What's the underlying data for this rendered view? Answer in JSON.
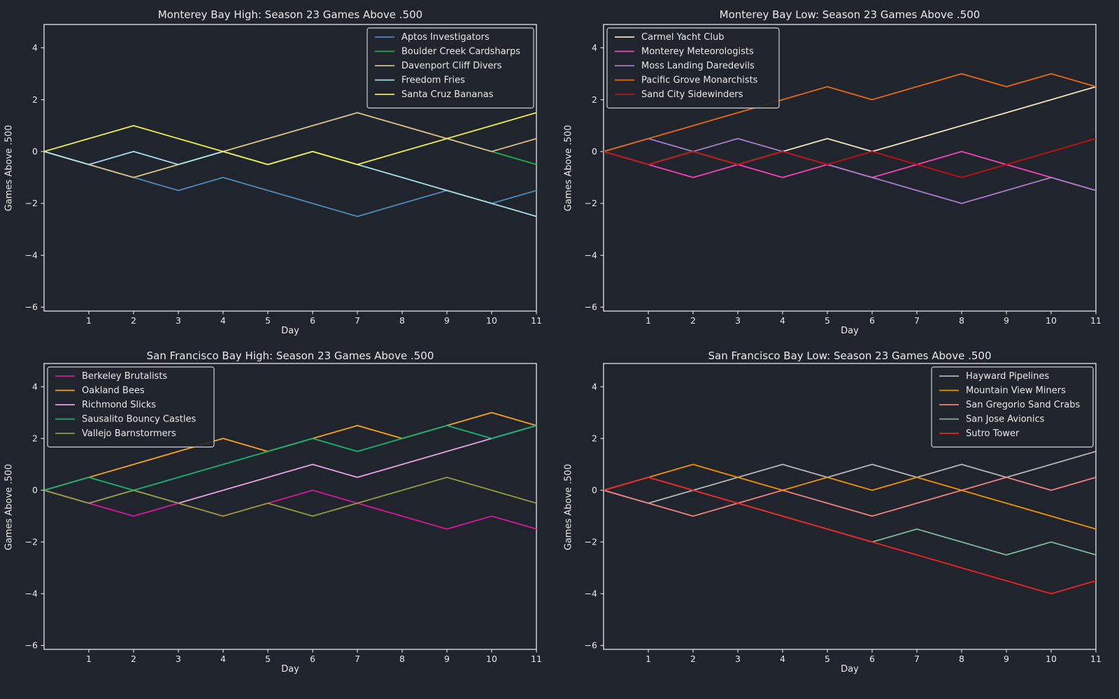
{
  "figure": {
    "background": "#20252d",
    "text_color": "#e9e9e9",
    "axis_color": "#d5d8dc",
    "legend_border_color": "#ccd0d4"
  },
  "chart_data": [
    {
      "type": "line",
      "title": "Monterey Bay High: Season 23 Games Above .500",
      "xlabel": "Day",
      "ylabel": "Games Above .500",
      "xlim": [
        0,
        11
      ],
      "ylim": [
        -6.15,
        4.9
      ],
      "x_ticks": [
        1,
        2,
        3,
        4,
        5,
        6,
        7,
        8,
        9,
        10,
        11
      ],
      "y_ticks": [
        -6,
        -4,
        -2,
        0,
        2,
        4
      ],
      "grid": false,
      "legend_position": "upper-right",
      "x": [
        0,
        1,
        2,
        3,
        4,
        5,
        6,
        7,
        8,
        9,
        10,
        11
      ],
      "series": [
        {
          "name": "Aptos Investigators",
          "color": "#5088b8",
          "values": [
            0,
            -0.5,
            -1,
            -1.5,
            -1,
            -1.5,
            -2,
            -2.5,
            -2,
            -1.5,
            -2,
            -1.5
          ]
        },
        {
          "name": "Boulder Creek Cardsharps",
          "color": "#1eb14b",
          "values": [
            0,
            -0.5,
            -1,
            -0.5,
            0,
            0.5,
            1,
            1.5,
            1,
            0.5,
            0,
            -0.5
          ]
        },
        {
          "name": "Davenport Cliff Divers",
          "color": "#deb887",
          "values": [
            0,
            -0.5,
            -1,
            -0.5,
            0,
            0.5,
            1,
            1.5,
            1,
            0.5,
            0,
            0.5
          ]
        },
        {
          "name": "Freedom Fries",
          "color": "#aadde6",
          "values": [
            0,
            -0.5,
            0,
            -0.5,
            0,
            -0.5,
            0,
            -0.5,
            -1,
            -1.5,
            -2,
            -2.5
          ]
        },
        {
          "name": "Santa Cruz Bananas",
          "color": "#ecec4d",
          "values": [
            0,
            0.5,
            1,
            0.5,
            0,
            -0.5,
            0,
            -0.5,
            0,
            0.5,
            1,
            1.5
          ]
        }
      ]
    },
    {
      "type": "line",
      "title": "Monterey Bay Low: Season 23 Games Above .500",
      "xlabel": "Day",
      "ylabel": "Games Above .500",
      "xlim": [
        0,
        11
      ],
      "ylim": [
        -6.15,
        4.9
      ],
      "x_ticks": [
        1,
        2,
        3,
        4,
        5,
        6,
        7,
        8,
        9,
        10,
        11
      ],
      "y_ticks": [
        -6,
        -4,
        -2,
        0,
        2,
        4
      ],
      "grid": false,
      "legend_position": "upper-left",
      "x": [
        0,
        1,
        2,
        3,
        4,
        5,
        6,
        7,
        8,
        9,
        10,
        11
      ],
      "series": [
        {
          "name": "Carmel Yacht Club",
          "color": "#f2e2bd",
          "values": [
            0,
            -0.5,
            0,
            -0.5,
            0,
            0.5,
            0,
            0.5,
            1,
            1.5,
            2,
            2.5
          ]
        },
        {
          "name": "Monterey Meteorologists",
          "color": "#f243b5",
          "values": [
            0,
            -0.5,
            -1,
            -0.5,
            -1,
            -0.5,
            -1,
            -0.5,
            0,
            -0.5,
            -1,
            -1.5
          ]
        },
        {
          "name": "Moss Landing Daredevils",
          "color": "#a67dca",
          "values": [
            0,
            0.5,
            0,
            0.5,
            0,
            -0.5,
            -1,
            -1.5,
            -2,
            -1.5,
            -1,
            -1.5
          ]
        },
        {
          "name": "Pacific Grove Monarchists",
          "color": "#ea690f",
          "values": [
            0,
            0.5,
            1,
            1.5,
            2,
            2.5,
            2,
            2.5,
            3,
            2.5,
            3,
            2.5
          ]
        },
        {
          "name": "Sand City Sidewinders",
          "color": "#c21010",
          "values": [
            0,
            -0.5,
            0,
            -0.5,
            0,
            -0.5,
            0,
            -0.5,
            -1,
            -0.5,
            0,
            0.5
          ]
        }
      ]
    },
    {
      "type": "line",
      "title": "San Francisco Bay High: Season 23 Games Above .500",
      "xlabel": "Day",
      "ylabel": "Games Above .500",
      "xlim": [
        0,
        11
      ],
      "ylim": [
        -6.15,
        4.9
      ],
      "x_ticks": [
        1,
        2,
        3,
        4,
        5,
        6,
        7,
        8,
        9,
        10,
        11
      ],
      "y_ticks": [
        -6,
        -4,
        -2,
        0,
        2,
        4
      ],
      "grid": false,
      "legend_position": "upper-left",
      "x": [
        0,
        1,
        2,
        3,
        4,
        5,
        6,
        7,
        8,
        9,
        10,
        11
      ],
      "series": [
        {
          "name": "Berkeley Brutalists",
          "color": "#d4189d",
          "values": [
            0,
            -0.5,
            -1,
            -0.5,
            -1,
            -0.5,
            0,
            -0.5,
            -1,
            -1.5,
            -1,
            -1.5
          ]
        },
        {
          "name": "Oakland Bees",
          "color": "#f7a41b",
          "values": [
            0,
            0.5,
            1,
            1.5,
            2,
            1.5,
            2,
            2.5,
            2,
            2.5,
            3,
            2.5
          ]
        },
        {
          "name": "Richmond Slicks",
          "color": "#e6a3df",
          "values": [
            0,
            -0.5,
            0,
            -0.5,
            0,
            0.5,
            1,
            0.5,
            1,
            1.5,
            2,
            2.5
          ]
        },
        {
          "name": "Sausalito Bouncy Castles",
          "color": "#17b273",
          "values": [
            0,
            0.5,
            0,
            0.5,
            1,
            1.5,
            2,
            1.5,
            2,
            2.5,
            2,
            2.5
          ]
        },
        {
          "name": "Vallejo Barnstormers",
          "color": "#8e9c3e",
          "values": [
            0,
            -0.5,
            0,
            -0.5,
            -1,
            -0.5,
            -1,
            -0.5,
            0,
            0.5,
            0,
            -0.5
          ]
        }
      ]
    },
    {
      "type": "line",
      "title": "San Francisco Bay Low: Season 23 Games Above .500",
      "xlabel": "Day",
      "ylabel": "Games Above .500",
      "xlim": [
        0,
        11
      ],
      "ylim": [
        -6.15,
        4.9
      ],
      "x_ticks": [
        1,
        2,
        3,
        4,
        5,
        6,
        7,
        8,
        9,
        10,
        11
      ],
      "y_ticks": [
        -6,
        -4,
        -2,
        0,
        2,
        4
      ],
      "grid": false,
      "legend_position": "upper-right",
      "x": [
        0,
        1,
        2,
        3,
        4,
        5,
        6,
        7,
        8,
        9,
        10,
        11
      ],
      "series": [
        {
          "name": "Hayward Pipelines",
          "color": "#b5b5b5",
          "values": [
            0,
            -0.5,
            0,
            0.5,
            1,
            0.5,
            1,
            0.5,
            1,
            0.5,
            1,
            1.5
          ]
        },
        {
          "name": "Mountain View Miners",
          "color": "#f19200",
          "values": [
            0,
            0.5,
            1,
            0.5,
            0,
            0.5,
            0,
            0.5,
            0,
            -0.5,
            -1,
            -1.5
          ]
        },
        {
          "name": "San Gregorio Sand Crabs",
          "color": "#f08080",
          "values": [
            0,
            -0.5,
            -1,
            -0.5,
            0,
            -0.5,
            -1,
            -0.5,
            0,
            0.5,
            0,
            0.5
          ]
        },
        {
          "name": "San Jose Avionics",
          "color": "#7fb69b",
          "values": [
            0,
            0.5,
            0,
            -0.5,
            -1,
            -1.5,
            -2,
            -1.5,
            -2,
            -2.5,
            -2,
            -2.5
          ]
        },
        {
          "name": "Sutro Tower",
          "color": "#ee2222",
          "values": [
            0,
            0.5,
            0,
            -0.5,
            -1,
            -1.5,
            -2,
            -2.5,
            -3,
            -3.5,
            -4,
            -3.5
          ]
        }
      ]
    }
  ]
}
